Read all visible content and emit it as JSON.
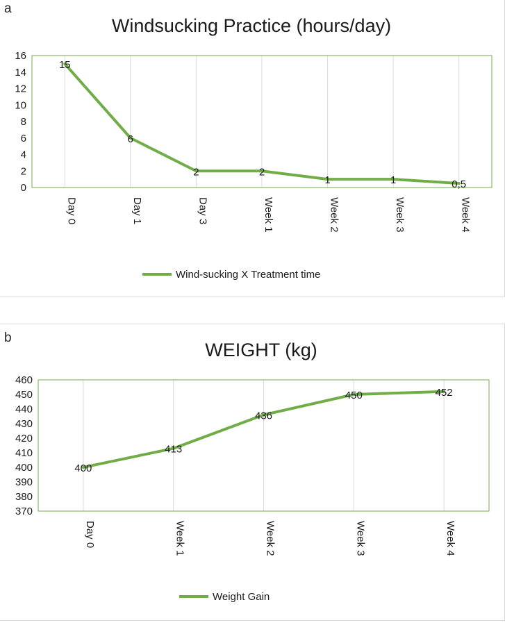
{
  "colors": {
    "series": "#70ad47",
    "plot_border": "#70ad47",
    "gridline": "#d9d9d9"
  },
  "panels": {
    "a_label": "a",
    "b_label": "b"
  },
  "chart_data": [
    {
      "type": "line",
      "title": "Windsucking Practice (hours/day)",
      "xlabel": "",
      "ylabel": "",
      "categories": [
        "Day 0",
        "Day 1",
        "Day 3",
        "Week 1",
        "Week 2",
        "Week 3",
        "Week 4"
      ],
      "series": [
        {
          "name": "Wind-sucking X Treatment time",
          "values": [
            15,
            6,
            2,
            2,
            1,
            1,
            0.5
          ]
        }
      ],
      "data_labels": [
        "15",
        "6",
        "2",
        "2",
        "1",
        "1",
        "0,5"
      ],
      "yticks": [
        "0",
        "2",
        "4",
        "6",
        "8",
        "10",
        "12",
        "14",
        "16"
      ],
      "ylim": [
        0,
        16
      ],
      "legend": "bottom",
      "grid": "vertical"
    },
    {
      "type": "line",
      "title": "WEIGHT (kg)",
      "xlabel": "",
      "ylabel": "",
      "categories": [
        "Day 0",
        "Week 1",
        "Week 2",
        "Week 3",
        "Week 4"
      ],
      "series": [
        {
          "name": "Weight Gain",
          "values": [
            400,
            413,
            436,
            450,
            452
          ]
        }
      ],
      "data_labels": [
        "400",
        "413",
        "436",
        "450",
        "452"
      ],
      "yticks": [
        "370",
        "380",
        "390",
        "400",
        "410",
        "420",
        "430",
        "440",
        "450",
        "460"
      ],
      "ylim": [
        370,
        460
      ],
      "legend": "bottom",
      "grid": "vertical"
    }
  ]
}
